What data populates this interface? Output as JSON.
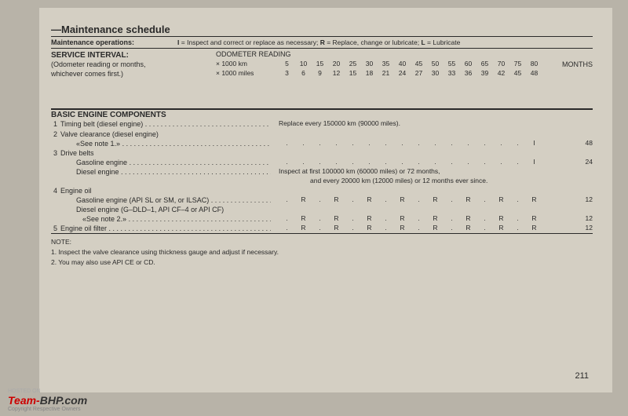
{
  "title": "—Maintenance schedule",
  "ops": {
    "label": "Maintenance operations:",
    "legend": "I = Inspect and correct or replace as necessary; R = Replace, change or lubricate; L = Lubricate"
  },
  "header": {
    "interval": "SERVICE INTERVAL:",
    "sub1": "(Odometer reading or months,",
    "sub2": "whichever comes first.)",
    "odo_title": "ODOMETER READING",
    "km_lbl": "× 1000 km",
    "mi_lbl": "× 1000 miles",
    "km": [
      "5",
      "10",
      "15",
      "20",
      "25",
      "30",
      "35",
      "40",
      "45",
      "50",
      "55",
      "60",
      "65",
      "70",
      "75",
      "80"
    ],
    "mi": [
      "3",
      "6",
      "9",
      "12",
      "15",
      "18",
      "21",
      "24",
      "27",
      "30",
      "33",
      "36",
      "39",
      "42",
      "45",
      "48"
    ],
    "months": "MONTHS"
  },
  "section": "BASIC ENGINE COMPONENTS",
  "rows": [
    {
      "n": "1",
      "txt": "Timing belt (diesel engine)",
      "note": "Replace every 150000 km (90000 miles).",
      "month": ""
    },
    {
      "n": "2",
      "txt": "Valve clearance (diesel engine)",
      "nodots": true
    },
    {
      "txt": "«See note 1.»",
      "ind": 2,
      "marks": [
        ".",
        ".",
        ".",
        ".",
        ".",
        ".",
        ".",
        ".",
        ".",
        ".",
        ".",
        ".",
        ".",
        ".",
        ".",
        "I"
      ],
      "month": "48"
    },
    {
      "n": "3",
      "txt": "Drive belts",
      "nodots": true
    },
    {
      "txt": "Gasoline engine",
      "ind": 2,
      "marks": [
        ".",
        ".",
        ".",
        ".",
        ".",
        ".",
        ".",
        ".",
        ".",
        ".",
        ".",
        ".",
        ".",
        ".",
        ".",
        "I"
      ],
      "month": "24"
    },
    {
      "txt": "Diesel engine",
      "ind": 2,
      "note": "Inspect at first 100000 km (60000 miles) or 72 months,",
      "month": ""
    },
    {
      "txt": "",
      "nodots": true,
      "note2": "and every 20000 km (12000 miles) or 12 months ever since."
    },
    {
      "n": "4",
      "txt": "Engine oil",
      "nodots": true
    },
    {
      "txt": "Gasoline engine (API SL or SM, or ILSAC)",
      "ind": 2,
      "marks": [
        ".",
        "R",
        ".",
        "R",
        ".",
        "R",
        ".",
        "R",
        ".",
        "R",
        ".",
        "R",
        ".",
        "R",
        ".",
        "R"
      ],
      "month": "12"
    },
    {
      "txt": "Diesel engine (G–DLD–1, API CF–4 or API CF)",
      "ind": 2,
      "nodots": true
    },
    {
      "txt": "«See note 2.»",
      "ind": 3,
      "marks": [
        ".",
        "R",
        ".",
        "R",
        ".",
        "R",
        ".",
        "R",
        ".",
        "R",
        ".",
        "R",
        ".",
        "R",
        ".",
        "R"
      ],
      "month": "12"
    },
    {
      "n": "5",
      "txt": "Engine oil filter",
      "marks": [
        ".",
        "R",
        ".",
        "R",
        ".",
        "R",
        ".",
        "R",
        ".",
        "R",
        ".",
        "R",
        ".",
        "R",
        ".",
        "R"
      ],
      "month": "12",
      "bb": true
    }
  ],
  "notes": {
    "h": "NOTE:",
    "n1": "1. Inspect the valve clearance using thickness gauge and adjust if necessary.",
    "n2": "2. You may also use API CE or CD."
  },
  "page_num": "211",
  "watermark": {
    "hosted": "HOSTED ON",
    "brand1": "Team-",
    "brand2": "BHP",
    "ext": ".com",
    "copy": "Copyright Respective Owners"
  }
}
